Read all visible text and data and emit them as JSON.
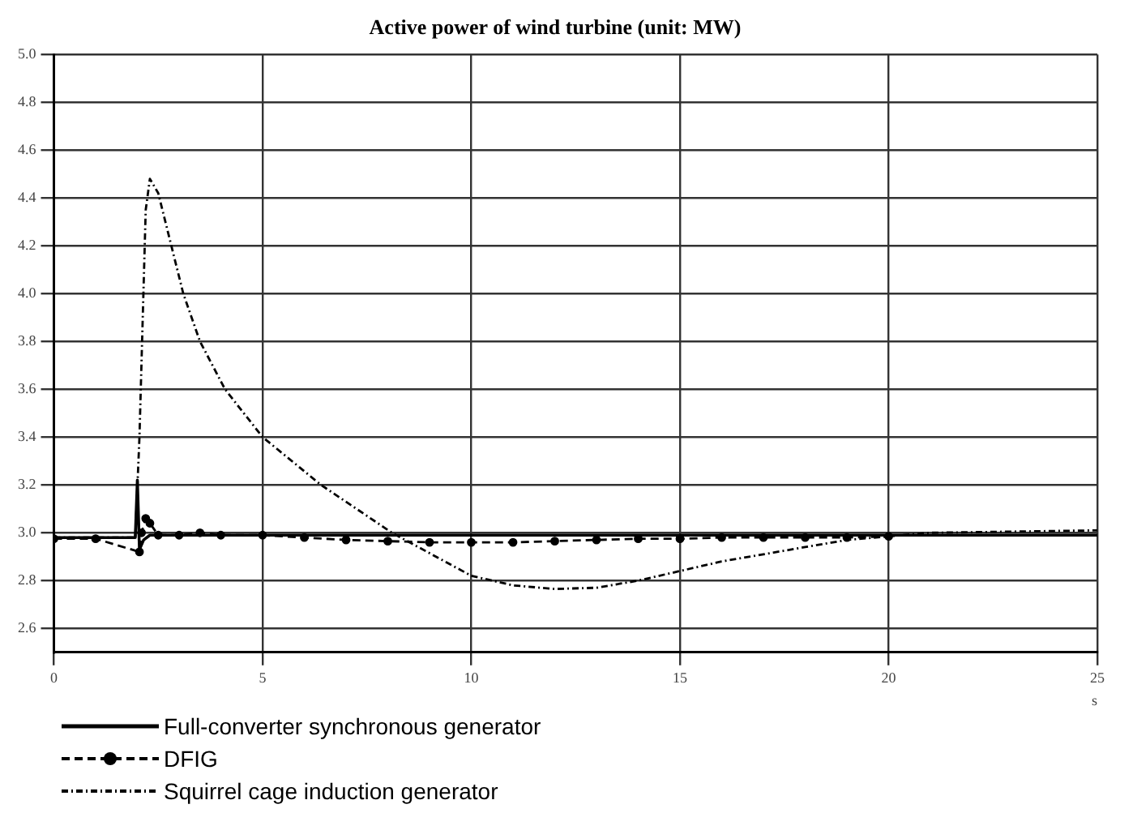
{
  "chart_data": {
    "type": "line",
    "title": "Active power of wind turbine (unit: MW)",
    "xlabel": "s",
    "xlim": [
      0,
      25
    ],
    "xticks": [
      0,
      5,
      10,
      15,
      20,
      25
    ],
    "ylim": [
      2.5,
      5.0
    ],
    "yticks": [
      {
        "value": 2.6,
        "label": "2.6"
      },
      {
        "value": 2.8,
        "label": "2.8"
      },
      {
        "value": 3.0,
        "label": "3.0"
      },
      {
        "value": 3.2,
        "label": "3.2"
      },
      {
        "value": 3.4,
        "label": "3.4"
      },
      {
        "value": 3.6,
        "label": "3.6"
      },
      {
        "value": 3.8,
        "label": "3.8"
      },
      {
        "value": 4.0,
        "label": "4.0"
      },
      {
        "value": 4.2,
        "label": "4.2"
      },
      {
        "value": 4.4,
        "label": "4.4"
      },
      {
        "value": 4.6,
        "label": "4.6"
      },
      {
        "value": 4.8,
        "label": "4.8"
      },
      {
        "value": 5.0,
        "label": "5.0"
      }
    ],
    "grid": true,
    "legend": "bottom",
    "series": [
      {
        "name": "Full-converter synchronous generator",
        "color": "#000000",
        "line_style": "solid",
        "marker": "none",
        "x": [
          0,
          1.95,
          2.0,
          2.05,
          2.15,
          2.3,
          3,
          5,
          10,
          15,
          20,
          25
        ],
        "values": [
          2.98,
          2.98,
          3.22,
          2.93,
          2.97,
          2.99,
          2.99,
          2.99,
          2.99,
          2.99,
          2.99,
          2.99
        ]
      },
      {
        "name": "DFIG",
        "color": "#000000",
        "line_style": "dashed",
        "marker": "circle",
        "x": [
          0,
          1,
          2.05,
          2.1,
          2.2,
          2.3,
          2.5,
          3,
          3.5,
          4,
          5,
          6,
          7,
          8,
          9,
          10,
          11,
          12,
          13,
          14,
          15,
          16,
          17,
          18,
          19,
          20
        ],
        "values": [
          2.975,
          2.975,
          2.92,
          3.0,
          3.06,
          3.04,
          2.99,
          2.99,
          3.0,
          2.99,
          2.99,
          2.98,
          2.97,
          2.965,
          2.96,
          2.96,
          2.96,
          2.965,
          2.97,
          2.975,
          2.975,
          2.98,
          2.98,
          2.98,
          2.98,
          2.985
        ]
      },
      {
        "name": "Squirrel cage induction generator",
        "color": "#000000",
        "line_style": "dotted",
        "marker": "none",
        "x": [
          0,
          1.95,
          2.05,
          2.2,
          2.3,
          2.5,
          3.1,
          3.5,
          4.1,
          5,
          6.4,
          8.1,
          10,
          11,
          12,
          13,
          14,
          15,
          16,
          17,
          18,
          19,
          20,
          21,
          23,
          25
        ],
        "values": [
          2.98,
          2.98,
          3.4,
          4.35,
          4.48,
          4.42,
          4.0,
          3.8,
          3.6,
          3.4,
          3.2,
          3.0,
          2.82,
          2.78,
          2.765,
          2.77,
          2.8,
          2.84,
          2.88,
          2.91,
          2.94,
          2.97,
          2.985,
          3.0,
          3.005,
          3.01
        ]
      }
    ]
  }
}
